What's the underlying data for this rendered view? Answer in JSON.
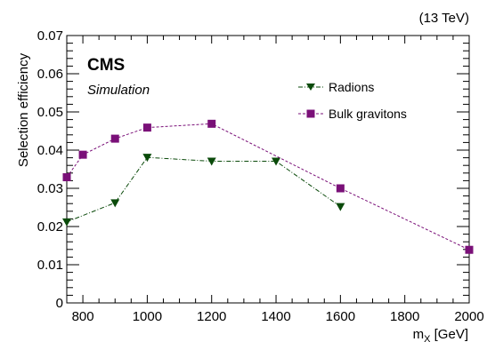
{
  "chart_data": {
    "type": "line",
    "energy_label": "(13 TeV)",
    "experiment": "CMS",
    "experiment_sub": "Simulation",
    "xlabel": "m",
    "xlabel_sub": "X",
    "xlabel_unit": " [GeV]",
    "ylabel": "Selection efficiency",
    "xlim": [
      750,
      2000
    ],
    "ylim": [
      0,
      0.07
    ],
    "x_ticks": [
      800,
      1000,
      1200,
      1400,
      1600,
      1800,
      2000
    ],
    "x_tick_labels": [
      "800",
      "1000",
      "1200",
      "1400",
      "1600",
      "1800",
      "2000"
    ],
    "y_ticks": [
      0,
      0.01,
      0.02,
      0.03,
      0.04,
      0.05,
      0.06,
      0.07
    ],
    "y_tick_labels": [
      "0",
      "0.01",
      "0.02",
      "0.03",
      "0.04",
      "0.05",
      "0.06",
      "0.07"
    ],
    "legend_position": "top-right",
    "grid": false,
    "series": [
      {
        "name": "Radions",
        "color": "#0a4a0a",
        "marker": "triangle-down",
        "line": "dash-dot",
        "x": [
          750,
          900,
          1000,
          1200,
          1400,
          1600
        ],
        "y": [
          0.0212,
          0.0262,
          0.0381,
          0.0371,
          0.0371,
          0.0252
        ]
      },
      {
        "name": "Bulk gravitons",
        "color": "#7a1078",
        "marker": "square",
        "line": "dashed",
        "x": [
          750,
          800,
          900,
          1000,
          1200,
          1600,
          2000
        ],
        "y": [
          0.0329,
          0.0388,
          0.043,
          0.0459,
          0.0469,
          0.03,
          0.0139
        ]
      }
    ]
  }
}
